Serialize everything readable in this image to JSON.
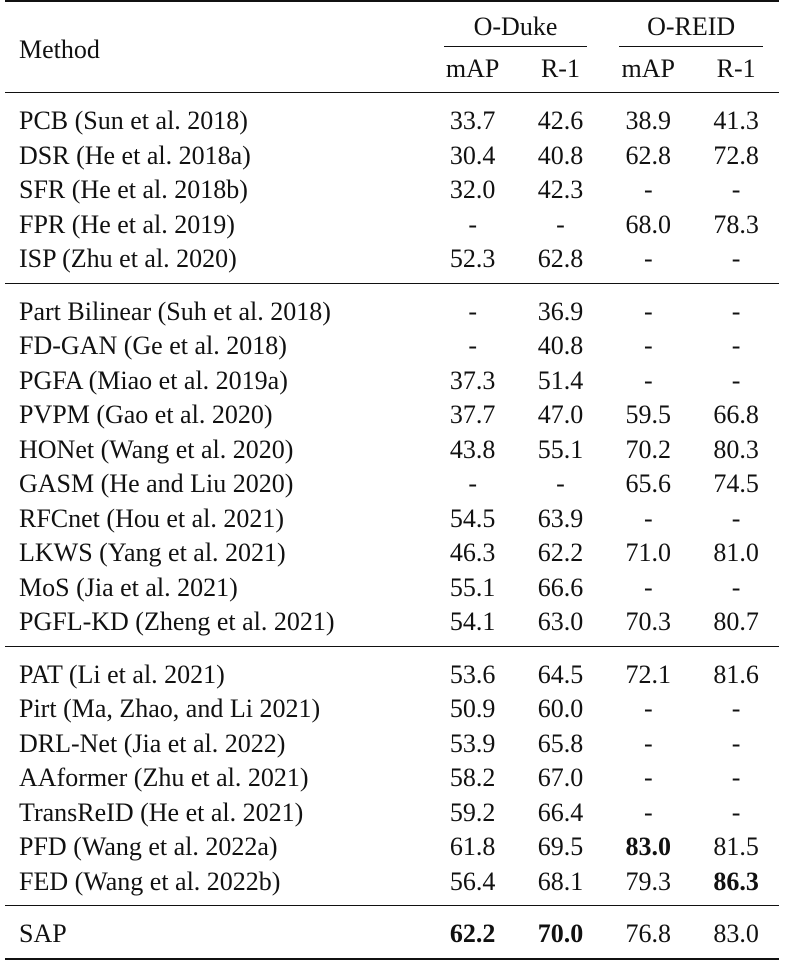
{
  "header": {
    "method": "Method",
    "groups": [
      "O-Duke",
      "O-REID"
    ],
    "subcols": [
      "mAP",
      "R-1",
      "mAP",
      "R-1"
    ]
  },
  "groups": [
    {
      "rows": [
        {
          "method": "PCB (Sun et al. 2018)",
          "values": [
            "33.7",
            "42.6",
            "38.9",
            "41.3"
          ],
          "bold": [
            false,
            false,
            false,
            false
          ]
        },
        {
          "method": "DSR (He et al. 2018a)",
          "values": [
            "30.4",
            "40.8",
            "62.8",
            "72.8"
          ],
          "bold": [
            false,
            false,
            false,
            false
          ]
        },
        {
          "method": "SFR (He et al. 2018b)",
          "values": [
            "32.0",
            "42.3",
            "-",
            "-"
          ],
          "bold": [
            false,
            false,
            false,
            false
          ]
        },
        {
          "method": "FPR (He et al. 2019)",
          "values": [
            "-",
            "-",
            "68.0",
            "78.3"
          ],
          "bold": [
            false,
            false,
            false,
            false
          ]
        },
        {
          "method": "ISP (Zhu et al. 2020)",
          "values": [
            "52.3",
            "62.8",
            "-",
            "-"
          ],
          "bold": [
            false,
            false,
            false,
            false
          ]
        }
      ]
    },
    {
      "rows": [
        {
          "method": "Part Bilinear (Suh et al. 2018)",
          "values": [
            "-",
            "36.9",
            "-",
            "-"
          ],
          "bold": [
            false,
            false,
            false,
            false
          ]
        },
        {
          "method": "FD-GAN (Ge et al. 2018)",
          "values": [
            "-",
            "40.8",
            "-",
            "-"
          ],
          "bold": [
            false,
            false,
            false,
            false
          ]
        },
        {
          "method": "PGFA (Miao et al. 2019a)",
          "values": [
            "37.3",
            "51.4",
            "-",
            "-"
          ],
          "bold": [
            false,
            false,
            false,
            false
          ]
        },
        {
          "method": "PVPM (Gao et al. 2020)",
          "values": [
            "37.7",
            "47.0",
            "59.5",
            "66.8"
          ],
          "bold": [
            false,
            false,
            false,
            false
          ]
        },
        {
          "method": "HONet (Wang et al. 2020)",
          "values": [
            "43.8",
            "55.1",
            "70.2",
            "80.3"
          ],
          "bold": [
            false,
            false,
            false,
            false
          ]
        },
        {
          "method": "GASM (He and Liu 2020)",
          "values": [
            "-",
            "-",
            "65.6",
            "74.5"
          ],
          "bold": [
            false,
            false,
            false,
            false
          ]
        },
        {
          "method": "RFCnet (Hou et al. 2021)",
          "values": [
            "54.5",
            "63.9",
            "-",
            "-"
          ],
          "bold": [
            false,
            false,
            false,
            false
          ]
        },
        {
          "method": "LKWS (Yang et al. 2021)",
          "values": [
            "46.3",
            "62.2",
            "71.0",
            "81.0"
          ],
          "bold": [
            false,
            false,
            false,
            false
          ]
        },
        {
          "method": "MoS (Jia et al. 2021)",
          "values": [
            "55.1",
            "66.6",
            "-",
            "-"
          ],
          "bold": [
            false,
            false,
            false,
            false
          ]
        },
        {
          "method": "PGFL-KD (Zheng et al. 2021)",
          "values": [
            "54.1",
            "63.0",
            "70.3",
            "80.7"
          ],
          "bold": [
            false,
            false,
            false,
            false
          ]
        }
      ]
    },
    {
      "rows": [
        {
          "method": "PAT (Li et al. 2021)",
          "values": [
            "53.6",
            "64.5",
            "72.1",
            "81.6"
          ],
          "bold": [
            false,
            false,
            false,
            false
          ]
        },
        {
          "method": "Pirt (Ma, Zhao, and Li 2021)",
          "values": [
            "50.9",
            "60.0",
            "-",
            "-"
          ],
          "bold": [
            false,
            false,
            false,
            false
          ]
        },
        {
          "method": "DRL-Net (Jia et al. 2022)",
          "values": [
            "53.9",
            "65.8",
            "-",
            "-"
          ],
          "bold": [
            false,
            false,
            false,
            false
          ]
        },
        {
          "method": "AAformer (Zhu et al. 2021)",
          "values": [
            "58.2",
            "67.0",
            "-",
            "-"
          ],
          "bold": [
            false,
            false,
            false,
            false
          ]
        },
        {
          "method": "TransReID (He et al. 2021)",
          "values": [
            "59.2",
            "66.4",
            "-",
            "-"
          ],
          "bold": [
            false,
            false,
            false,
            false
          ]
        },
        {
          "method": "PFD (Wang et al. 2022a)",
          "values": [
            "61.8",
            "69.5",
            "83.0",
            "81.5"
          ],
          "bold": [
            false,
            false,
            true,
            false
          ]
        },
        {
          "method": "FED (Wang et al. 2022b)",
          "values": [
            "56.4",
            "68.1",
            "79.3",
            "86.3"
          ],
          "bold": [
            false,
            false,
            false,
            true
          ]
        }
      ]
    },
    {
      "rows": [
        {
          "method": "SAP",
          "values": [
            "62.2",
            "70.0",
            "76.8",
            "83.0"
          ],
          "bold": [
            true,
            true,
            false,
            false
          ]
        }
      ]
    }
  ]
}
